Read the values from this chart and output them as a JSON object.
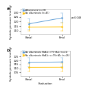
{
  "panel_a": {
    "label": "a",
    "lines": [
      {
        "label": "Albuminuria (n=36)",
        "color": "#5b9bd5",
        "x": [
          0,
          1
        ],
        "y": [
          117.5,
          124.0
        ],
        "yerr": [
          6.0,
          5.5
        ]
      },
      {
        "label": "No albuminuria (n=47)",
        "color": "#ffc000",
        "x": [
          0,
          1
        ],
        "y": [
          114.0,
          114.2
        ],
        "yerr": [
          4.5,
          4.5
        ]
      }
    ],
    "ylim": [
      106,
      134
    ],
    "yticks": [
      110,
      115,
      120,
      125,
      130
    ],
    "pvalue": "p=0.048",
    "ylabel": "Systolic pressure (mmHg)"
  },
  "panel_b": {
    "label": "b",
    "lines": [
      {
        "label": "No albuminuria HbA1c >7%+A1c (n=21)",
        "color": "#5b9bd5",
        "x": [
          0,
          1
        ],
        "y": [
          117.5,
          118.0
        ],
        "yerr": [
          5.5,
          5.5
        ]
      },
      {
        "label": "No albuminuria HbA1c <=7%+A1c (n=26)",
        "color": "#ffc000",
        "x": [
          0,
          1
        ],
        "y": [
          111.0,
          111.2
        ],
        "yerr": [
          5.0,
          5.0
        ]
      }
    ],
    "ylim": [
      100,
      132
    ],
    "yticks": [
      105,
      110,
      115,
      120,
      125
    ],
    "ylabel": "Systolic pressure (mmHg)"
  },
  "xlabel": "Evaluation",
  "xtick_labels": [
    "Basal",
    "Final"
  ],
  "background_color": "#ffffff",
  "tick_fontsize": 2.8,
  "label_fontsize": 2.8,
  "legend_fontsize": 2.2,
  "line_width": 0.7,
  "marker_size": 1.5,
  "cap_size": 1.2,
  "pvalue_fontsize": 2.5
}
